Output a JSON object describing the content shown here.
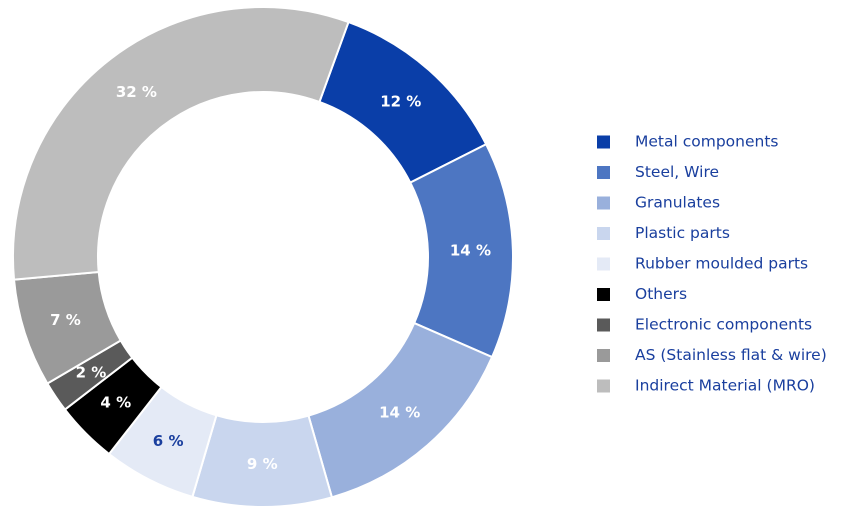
{
  "chart_data": {
    "type": "donut",
    "categories": [
      "Metal components",
      "Steel, Wire",
      "Granulates",
      "Plastic parts",
      "Rubber moulded parts",
      "Others",
      "Electronic components",
      "AS (Stainless flat & wire)",
      "Indirect Material (MRO)"
    ],
    "values": [
      12,
      14,
      14,
      9,
      6,
      4,
      2,
      7,
      32
    ],
    "value_labels": [
      "12 %",
      "14 %",
      "14 %",
      "9 %",
      "6 %",
      "4 %",
      "2 %",
      "7 %",
      "32 %"
    ],
    "colors": [
      "#0a3ea8",
      "#4d76c2",
      "#99b0dc",
      "#c9d6ee",
      "#e4eaf6",
      "#000000",
      "#5a5a5a",
      "#9a9a9a",
      "#bdbdbd"
    ],
    "value_label_colors": [
      "#ffffff",
      "#ffffff",
      "#ffffff",
      "#ffffff",
      "#1a3f9e",
      "#ffffff",
      "#ffffff",
      "#ffffff",
      "#ffffff"
    ],
    "legend": "right"
  }
}
